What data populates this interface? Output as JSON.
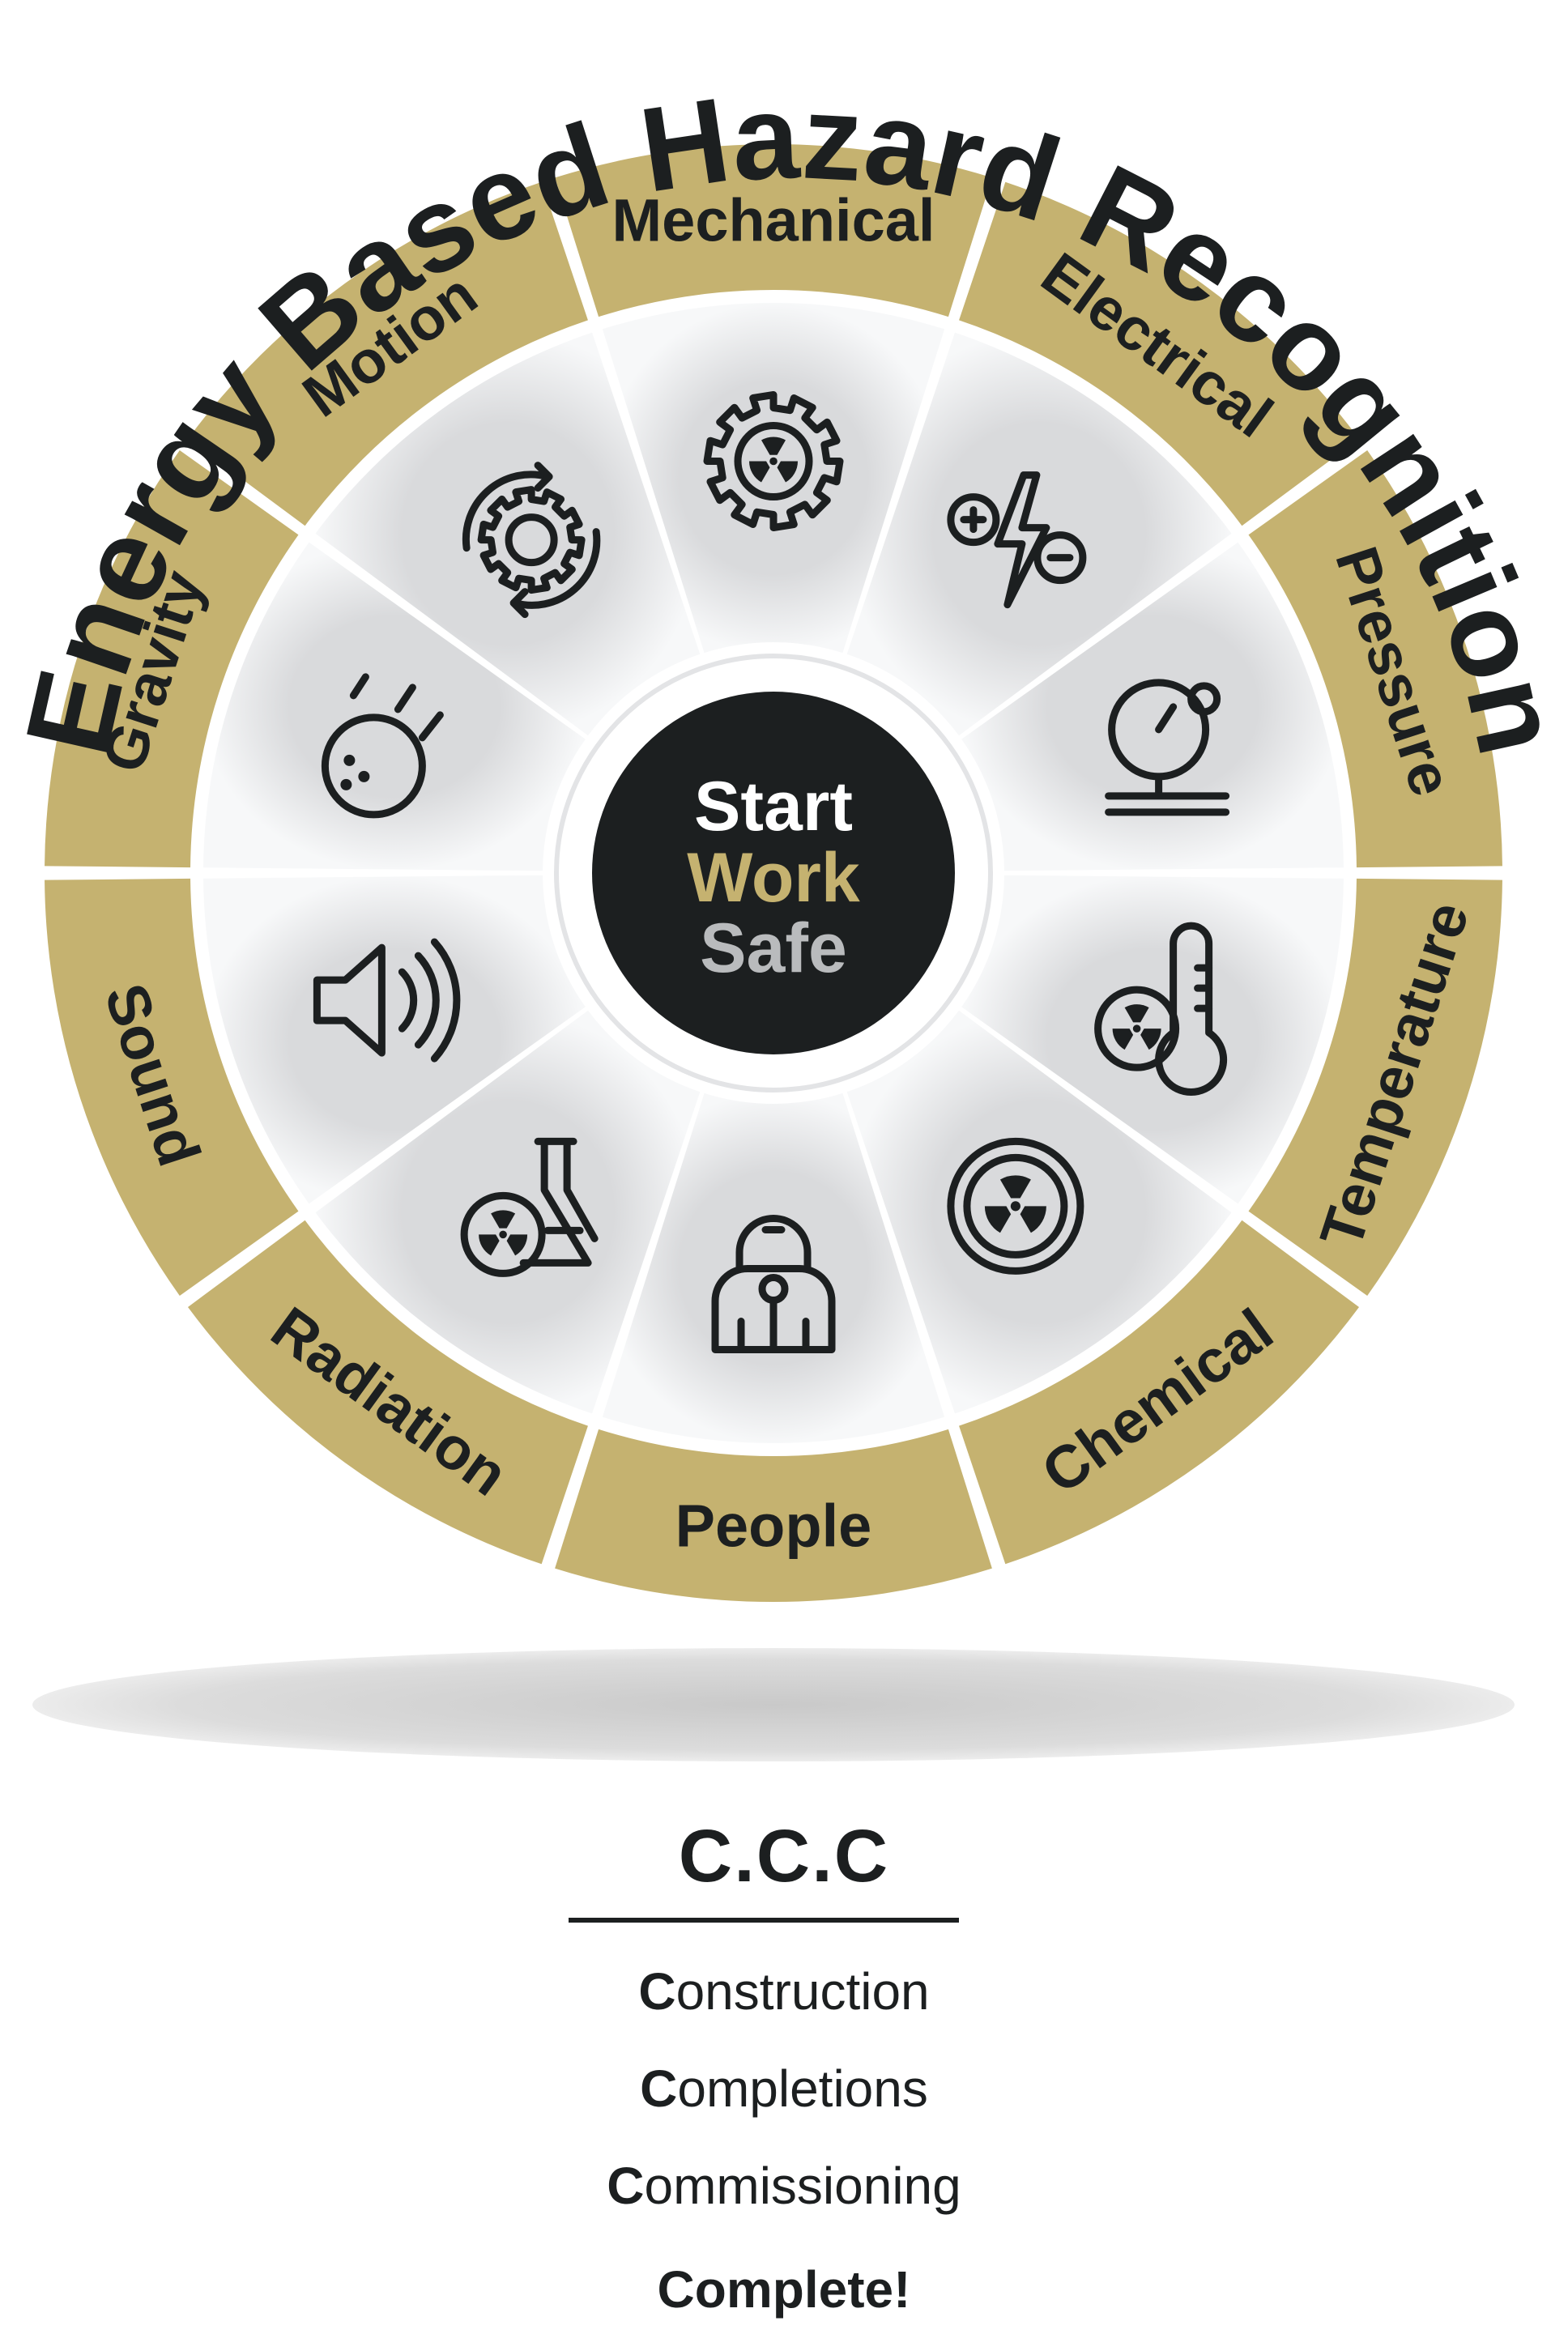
{
  "title": "Energy Based Hazard Recognition",
  "center": {
    "line1": "Start",
    "line2": "Work",
    "line3": "Safe"
  },
  "segments": [
    {
      "label": "Mechanical",
      "icon": "gear-radiation-icon"
    },
    {
      "label": "Electrical",
      "icon": "lightning-plus-minus-icon"
    },
    {
      "label": "Pressure",
      "icon": "pressure-gauge-icon"
    },
    {
      "label": "Temperature",
      "icon": "thermometer-hazard-icon"
    },
    {
      "label": "Chemical",
      "icon": "radiation-disc-icon"
    },
    {
      "label": "People",
      "icon": "hazmat-person-icon"
    },
    {
      "label": "Radiation",
      "icon": "flask-radiation-icon"
    },
    {
      "label": "Sound",
      "icon": "speaker-icon"
    },
    {
      "label": "Gravity",
      "icon": "falling-ball-icon"
    },
    {
      "label": "Motion",
      "icon": "rotating-gear-icon"
    }
  ],
  "colors": {
    "gold": "#c5b270",
    "dark": "#1c1f20",
    "silver": "#b9bbbd"
  },
  "ccc": {
    "title": "C.C.C",
    "lines": [
      {
        "initial": "C",
        "rest": "onstruction"
      },
      {
        "initial": "C",
        "rest": "ompletions"
      },
      {
        "initial": "C",
        "rest": "ommissioning"
      }
    ],
    "final": "Complete!"
  }
}
